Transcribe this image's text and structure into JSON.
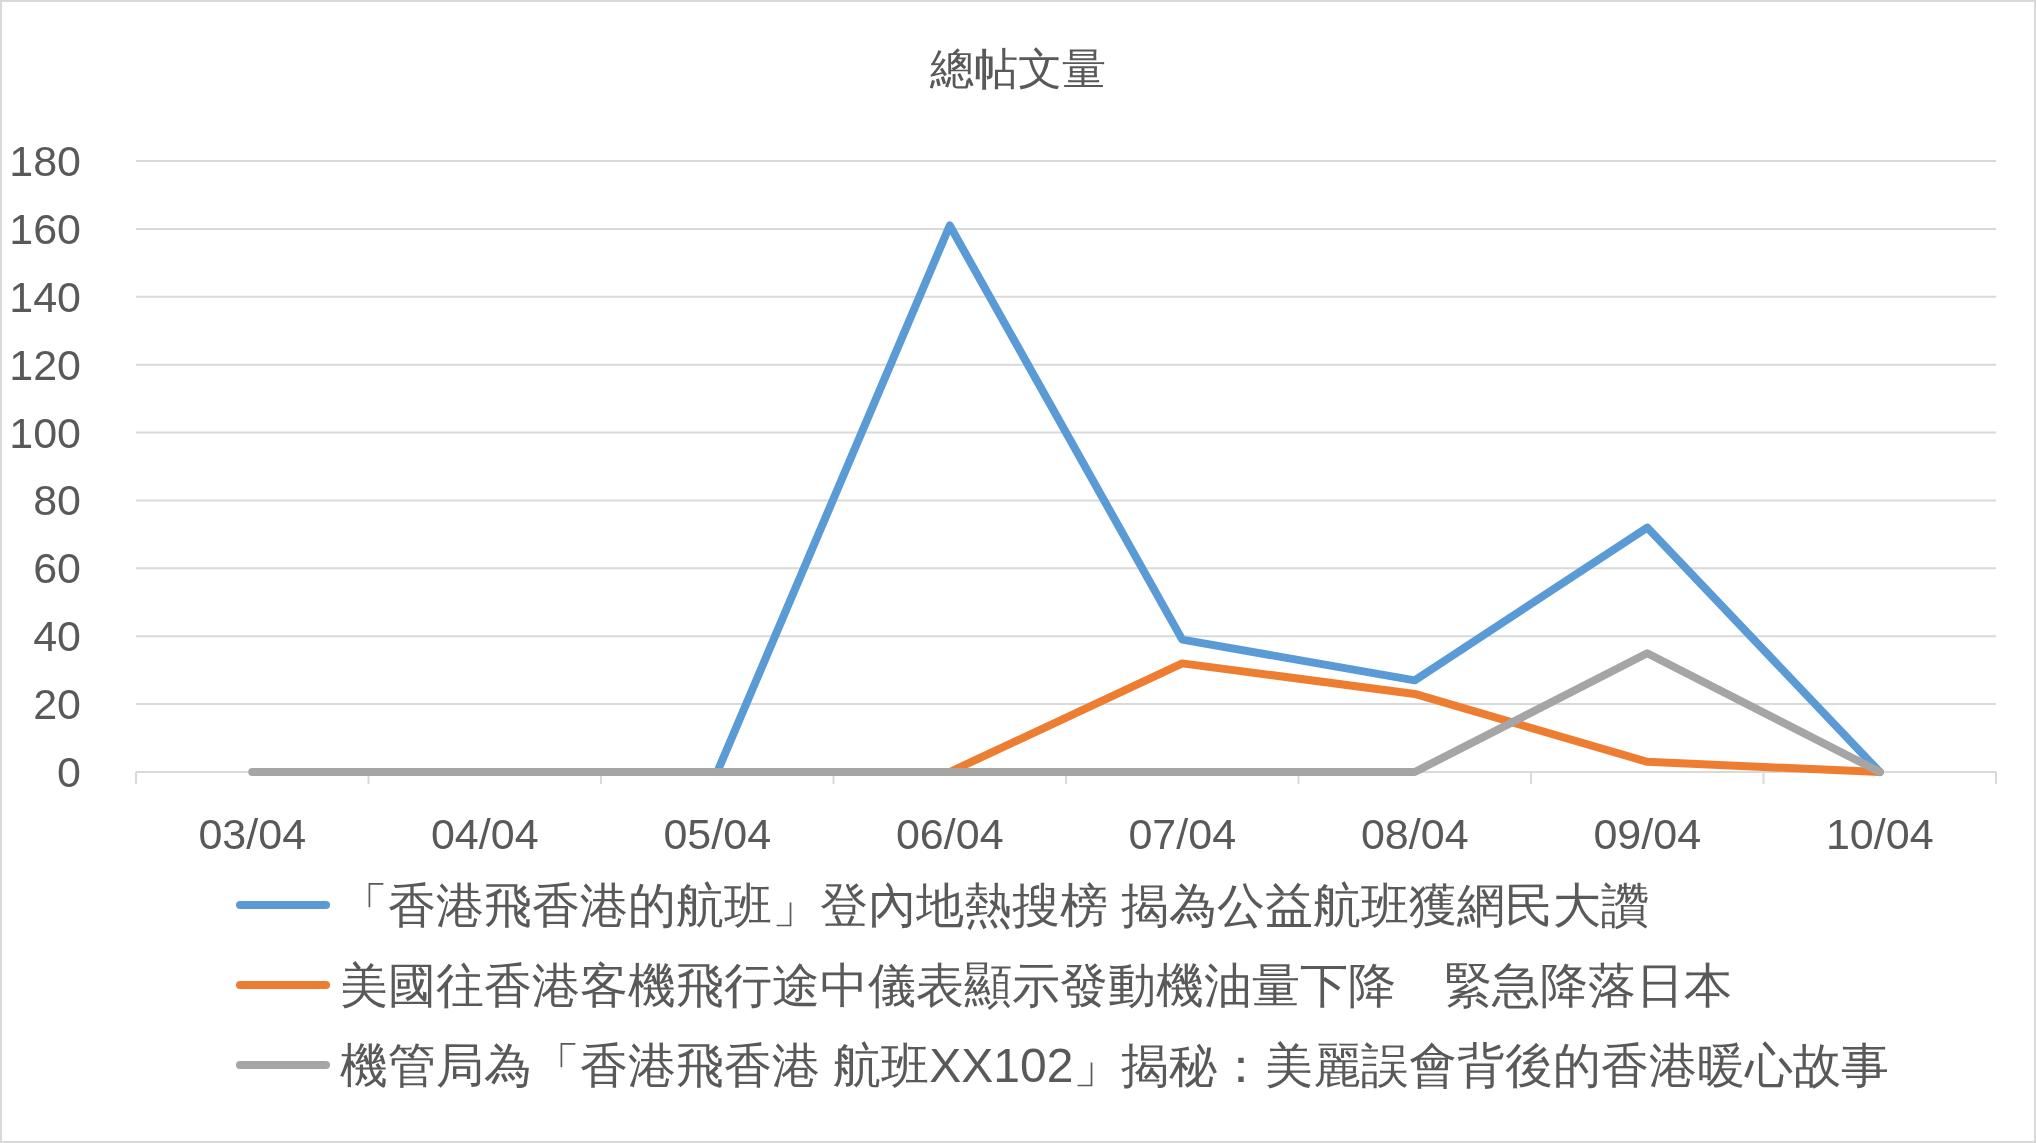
{
  "chart_data": {
    "type": "line",
    "title": "總帖文量",
    "categories": [
      "03/04",
      "04/04",
      "05/04",
      "06/04",
      "07/04",
      "08/04",
      "09/04",
      "10/04"
    ],
    "series": [
      {
        "name": "「香港飛香港的航班」登內地熱搜榜 揭為公益航班獲網民大讚",
        "color": "#5b9bd5",
        "values": [
          null,
          null,
          0,
          161,
          39,
          27,
          72,
          0
        ]
      },
      {
        "name": "美國往香港客機飛行途中儀表顯示發動機油量下降　緊急降落日本",
        "color": "#ed7d31",
        "values": [
          null,
          null,
          null,
          0,
          32,
          23,
          3,
          0
        ]
      },
      {
        "name": "機管局為「香港飛香港 航班XX102」揭秘：美麗誤會背後的香港暖心故事",
        "color": "#a5a5a5",
        "values": [
          0,
          0,
          0,
          0,
          0,
          0,
          35,
          0
        ]
      }
    ],
    "ylim": [
      0,
      180
    ],
    "yticks": [
      0,
      20,
      40,
      60,
      80,
      100,
      120,
      140,
      160,
      180
    ],
    "grid": "y",
    "legend": "bottom"
  }
}
